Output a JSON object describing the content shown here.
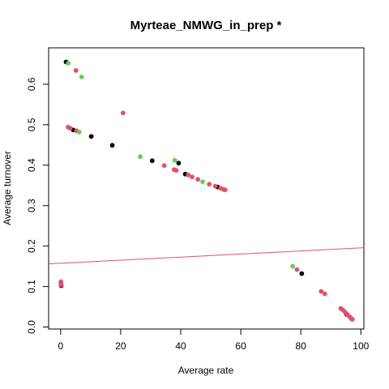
{
  "chart_data": {
    "type": "scatter",
    "title": "Myrteae_NMWG_in_prep *",
    "xlabel": "Average rate",
    "ylabel": "Average turnover",
    "xlim": [
      -4,
      101
    ],
    "ylim": [
      -0.005,
      0.69
    ],
    "xticks": [
      0,
      20,
      40,
      60,
      80,
      100
    ],
    "yticks": [
      0.0,
      0.1,
      0.2,
      0.3,
      0.4,
      0.5,
      0.6
    ],
    "xtick_labels": [
      "0",
      "20",
      "40",
      "60",
      "80",
      "100"
    ],
    "ytick_labels": [
      "0.0",
      "0.1",
      "0.2",
      "0.3",
      "0.4",
      "0.5",
      "0.6"
    ],
    "grid": false,
    "legend": "none",
    "colors": {
      "black": "#000000",
      "red": "#DF536B",
      "green": "#61D04F",
      "line": "#DF536B"
    },
    "regression_line": {
      "x": [
        -4,
        101
      ],
      "y": [
        0.156,
        0.196
      ]
    },
    "series": [
      {
        "color": "#000000",
        "points": [
          {
            "x": 1.8,
            "y": 0.655
          },
          {
            "x": 4.2,
            "y": 0.487
          },
          {
            "x": 10.2,
            "y": 0.471
          },
          {
            "x": 17.2,
            "y": 0.449
          },
          {
            "x": 30.5,
            "y": 0.411
          },
          {
            "x": 39.3,
            "y": 0.405
          },
          {
            "x": 41.5,
            "y": 0.378
          },
          {
            "x": 52.3,
            "y": 0.346
          },
          {
            "x": 80.3,
            "y": 0.132
          },
          {
            "x": 95.3,
            "y": 0.031
          },
          {
            "x": 0.2,
            "y": 0.102
          }
        ]
      },
      {
        "color": "#DF536B",
        "points": [
          {
            "x": 5.1,
            "y": 0.634
          },
          {
            "x": 2.5,
            "y": 0.494
          },
          {
            "x": 3.2,
            "y": 0.491
          },
          {
            "x": 5.3,
            "y": 0.485
          },
          {
            "x": 20.8,
            "y": 0.529
          },
          {
            "x": 34.5,
            "y": 0.399
          },
          {
            "x": 37.8,
            "y": 0.389
          },
          {
            "x": 38.5,
            "y": 0.387
          },
          {
            "x": 42.5,
            "y": 0.376
          },
          {
            "x": 43.8,
            "y": 0.371
          },
          {
            "x": 45.7,
            "y": 0.365
          },
          {
            "x": 49.5,
            "y": 0.353
          },
          {
            "x": 51.5,
            "y": 0.348
          },
          {
            "x": 53.3,
            "y": 0.343
          },
          {
            "x": 54.2,
            "y": 0.34
          },
          {
            "x": 54.8,
            "y": 0.339
          },
          {
            "x": 78.7,
            "y": 0.142
          },
          {
            "x": 86.8,
            "y": 0.088
          },
          {
            "x": 88.0,
            "y": 0.082
          },
          {
            "x": 93.3,
            "y": 0.046
          },
          {
            "x": 94.0,
            "y": 0.042
          },
          {
            "x": 94.7,
            "y": 0.037
          },
          {
            "x": 95.5,
            "y": 0.031
          },
          {
            "x": 96.2,
            "y": 0.026
          },
          {
            "x": 96.8,
            "y": 0.021
          },
          {
            "x": 97.2,
            "y": 0.019
          },
          {
            "x": 0.1,
            "y": 0.112
          },
          {
            "x": 0.1,
            "y": 0.108
          },
          {
            "x": 0.2,
            "y": 0.104
          }
        ]
      },
      {
        "color": "#61D04F",
        "points": [
          {
            "x": 2.5,
            "y": 0.652
          },
          {
            "x": 7.0,
            "y": 0.618
          },
          {
            "x": 6.2,
            "y": 0.482
          },
          {
            "x": 26.5,
            "y": 0.421
          },
          {
            "x": 38.0,
            "y": 0.412
          },
          {
            "x": 47.3,
            "y": 0.359
          },
          {
            "x": 77.3,
            "y": 0.15
          }
        ]
      }
    ]
  }
}
